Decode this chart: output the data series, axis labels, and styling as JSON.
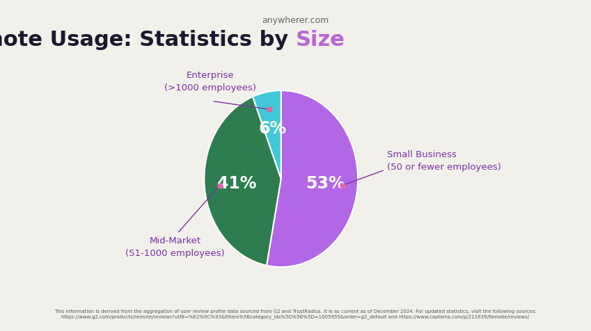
{
  "title_main": "Remote Usage: Statistics by ",
  "title_colored": "Size",
  "title_color_main": "#1a1a2e",
  "title_color_accent": "#b866d6",
  "background_color": "#f2f0eb",
  "slices": [
    {
      "label": "Small Business\n(50 or fewer employees)",
      "value": 53,
      "color": "#b366e6",
      "pct_label": "53%"
    },
    {
      "label": "Mid-Market\n(51-1000 employees)",
      "value": 41,
      "color": "#2e7d4f",
      "pct_label": "41%"
    },
    {
      "label": "Enterprise\n(>1000 employees)",
      "value": 6,
      "color": "#40c8d8",
      "pct_label": "6%"
    }
  ],
  "startangle": 90,
  "annotation_color": "#7b2fa8",
  "dot_color": "#e066aa",
  "footer_text": "This information is derived from the aggregation of user review profile data sourced from G2 and TrustRadius. It is as current as of December 2024. For updated statistics, visit the following sources: https://www.g2.com/products/remote/reviews?utf8=%E2%9C%93&filters%5Bcategory_ids%5D%5B%5D=1005955&order=g2_default and https://www.capterra.com/p/211639/Remote/reviews/",
  "logo_text": "anywherer.com"
}
